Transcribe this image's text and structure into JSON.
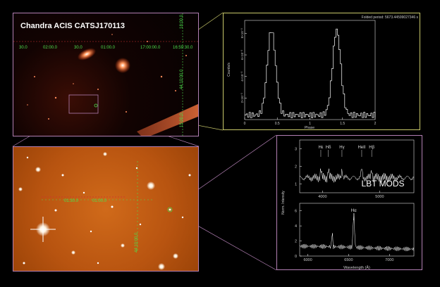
{
  "xray_panel": {
    "title": "Chandra ACIS CATSJ170113",
    "ra_labels": [
      "30.0",
      "02:00.0",
      "30.0",
      "01:00.0",
      "17:00:00.0",
      "16:59:30.0"
    ],
    "dec_labels": [
      "18:00.0",
      "44:10:00.0",
      "15:00.0"
    ]
  },
  "optical_panel": {
    "ra_labels": [
      "01:30.0",
      "01:00.0"
    ],
    "dec_labels": [
      "44:10:00.0"
    ]
  },
  "lightcurve": {
    "type": "line",
    "title": "Folded period: 5673.44599027346 s",
    "xlabel": "Phase",
    "ylabel": "Counts/s",
    "xlim": [
      0,
      2
    ],
    "x_ticks": [
      "0",
      "0.5",
      "1",
      "1.5",
      "2"
    ],
    "y_ticks": [
      "2×10⁻³",
      "4×10⁻³",
      "6×10⁻³",
      "8×10⁻³"
    ],
    "peaks_phase": [
      0.4,
      1.4
    ]
  },
  "spectrum": {
    "label": "LBT MODS",
    "ylabel": "Norm. Intensity",
    "xlabel": "Wavelength (Å)",
    "top": {
      "xlim": [
        3600,
        5600
      ],
      "ylim": [
        0.5,
        3.5
      ],
      "x_ticks": [
        "4000",
        "5000"
      ],
      "y_ticks": [
        "1",
        "2",
        "3"
      ],
      "lines": [
        {
          "label": "Hε",
          "x": 3970
        },
        {
          "label": "Hδ",
          "x": 4102
        },
        {
          "label": "Hγ",
          "x": 4340
        },
        {
          "label": "HeII",
          "x": 4686
        },
        {
          "label": "Hβ",
          "x": 4861
        }
      ]
    },
    "bottom": {
      "xlim": [
        5900,
        7300
      ],
      "ylim": [
        0,
        7
      ],
      "x_ticks": [
        "6000",
        "6500",
        "7000"
      ],
      "y_ticks": [
        "0",
        "2",
        "4",
        "6"
      ],
      "lines": [
        {
          "label": "Hα",
          "x": 6563
        }
      ]
    }
  }
}
